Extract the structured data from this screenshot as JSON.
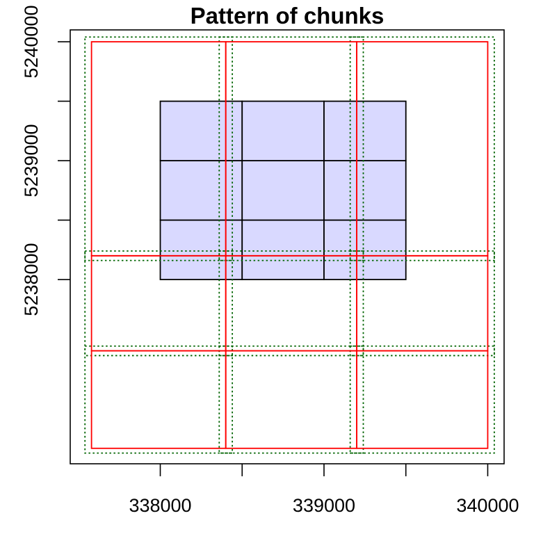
{
  "chart_data": {
    "type": "scatter",
    "title": "Pattern of chunks",
    "xlabel": "",
    "ylabel": "",
    "xlim": [
      337450,
      340100
    ],
    "ylim": [
      5236450,
      5240100
    ],
    "x_ticks": [
      338000,
      338500,
      339000,
      339500,
      340000
    ],
    "x_tick_labels": [
      "338000",
      "",
      "339000",
      "",
      "340000"
    ],
    "y_ticks": [
      5238000,
      5238500,
      5239000,
      5239500,
      5240000
    ],
    "y_tick_labels": [
      "5238000",
      "",
      "5239000",
      "",
      "5240000"
    ],
    "grid": false,
    "colors": {
      "tile_fill": "#d9d9ff",
      "tile_stroke": "#000000",
      "chunk_stroke": "#ff0000",
      "buffer_stroke": "#006400"
    },
    "tiles": [
      {
        "xmin": 338000,
        "xmax": 338500,
        "ymin": 5238000,
        "ymax": 5238500
      },
      {
        "xmin": 338500,
        "xmax": 339000,
        "ymin": 5238000,
        "ymax": 5238500
      },
      {
        "xmin": 339000,
        "xmax": 339500,
        "ymin": 5238000,
        "ymax": 5238500
      },
      {
        "xmin": 338000,
        "xmax": 338500,
        "ymin": 5238500,
        "ymax": 5239000
      },
      {
        "xmin": 338500,
        "xmax": 339000,
        "ymin": 5238500,
        "ymax": 5239000
      },
      {
        "xmin": 339000,
        "xmax": 339500,
        "ymin": 5238500,
        "ymax": 5239000
      },
      {
        "xmin": 338000,
        "xmax": 338500,
        "ymin": 5239000,
        "ymax": 5239500
      },
      {
        "xmin": 338500,
        "xmax": 339000,
        "ymin": 5239000,
        "ymax": 5239500
      },
      {
        "xmin": 339000,
        "xmax": 339500,
        "ymin": 5239000,
        "ymax": 5239500
      }
    ],
    "chunk_x_breaks": [
      337580,
      338400,
      339200,
      340000
    ],
    "chunk_y_breaks": [
      5236580,
      5237400,
      5238200,
      5240000
    ],
    "buffer": 40
  }
}
